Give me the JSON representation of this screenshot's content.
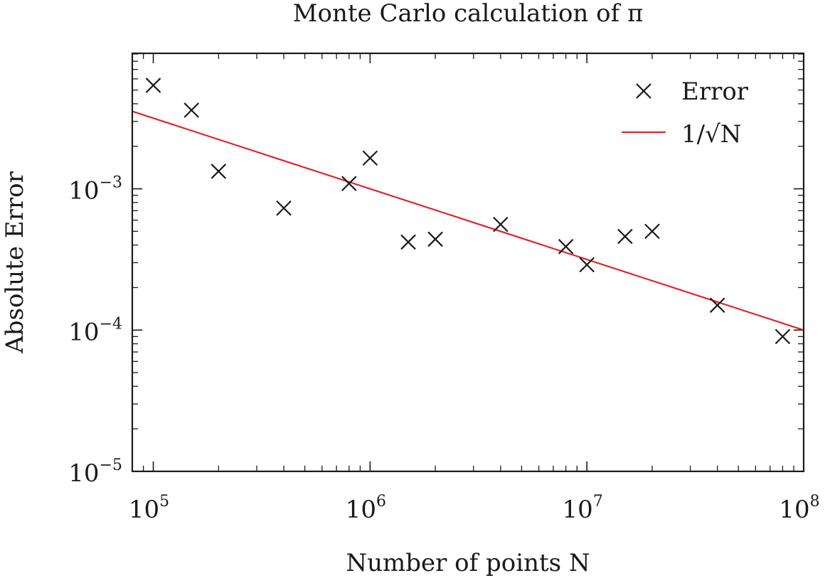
{
  "chart_data": {
    "type": "scatter",
    "title": "Monte Carlo calculation of π",
    "xlabel": "Number of points N",
    "ylabel": "Absolute Error",
    "xscale": "log",
    "yscale": "log",
    "xlim": [
      80000,
      100000000
    ],
    "ylim": [
      1e-05,
      0.0091
    ],
    "grid": false,
    "legend_position": "top-right",
    "x_ticks": [
      {
        "value": 100000,
        "base": "10",
        "exp": "5"
      },
      {
        "value": 1000000,
        "base": "10",
        "exp": "6"
      },
      {
        "value": 10000000,
        "base": "10",
        "exp": "7"
      },
      {
        "value": 100000000,
        "base": "10",
        "exp": "8"
      }
    ],
    "y_ticks": [
      {
        "value": 0.001,
        "base": "10",
        "exp": "−3"
      },
      {
        "value": 0.0001,
        "base": "10",
        "exp": "−4"
      },
      {
        "value": 1e-05,
        "base": "10",
        "exp": "−5"
      }
    ],
    "series": [
      {
        "name": "Error",
        "kind": "scatter",
        "marker": "x",
        "color": "#1a1a1a",
        "x": [
          100000,
          150000,
          200000,
          400000,
          800000,
          1000000,
          1500000,
          2000000,
          4000000,
          8000000,
          10000000,
          15000000,
          20000000,
          40000000,
          80000000
        ],
        "y": [
          0.0054,
          0.0036,
          0.00133,
          0.00073,
          0.00109,
          0.00165,
          0.00042,
          0.00044,
          0.00056,
          0.00039,
          0.00029,
          0.00046,
          0.0005,
          0.00015,
          9e-05
        ]
      },
      {
        "name": "1/√N",
        "kind": "line",
        "color": "#e3242b",
        "x": [
          80000,
          100000000
        ],
        "y": [
          0.003536,
          0.0001
        ]
      }
    ]
  }
}
